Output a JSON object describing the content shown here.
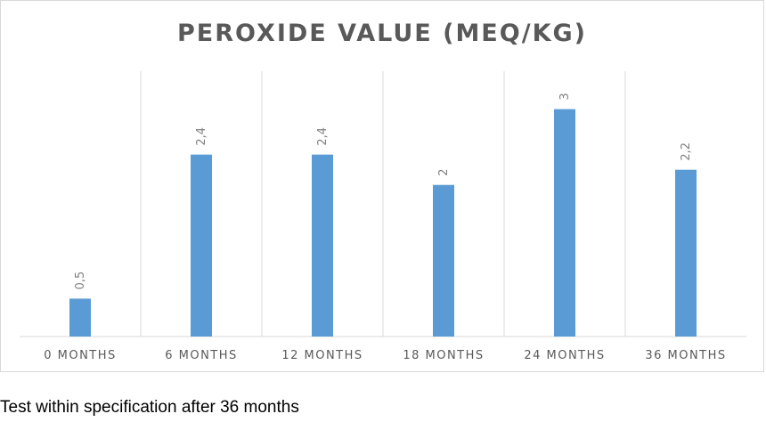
{
  "chart_data": {
    "type": "bar",
    "title": "PEROXIDE VALUE (MEQ/KG)",
    "categories": [
      "0 MONTHS",
      "6 MONTHS",
      "12 MONTHS",
      "18 MONTHS",
      "24 MONTHS",
      "36 MONTHS"
    ],
    "values": [
      0.5,
      2.4,
      2.4,
      2,
      3,
      2.2
    ],
    "data_labels": [
      "0,5",
      "2,4",
      "2,4",
      "2",
      "3",
      "2,2"
    ],
    "ylim": [
      0,
      3.5
    ],
    "xlabel": "",
    "ylabel": "",
    "grid": "vertical",
    "legend": "none",
    "bar_color": "#5b9bd5"
  },
  "caption": "Test within specification after 36 months"
}
